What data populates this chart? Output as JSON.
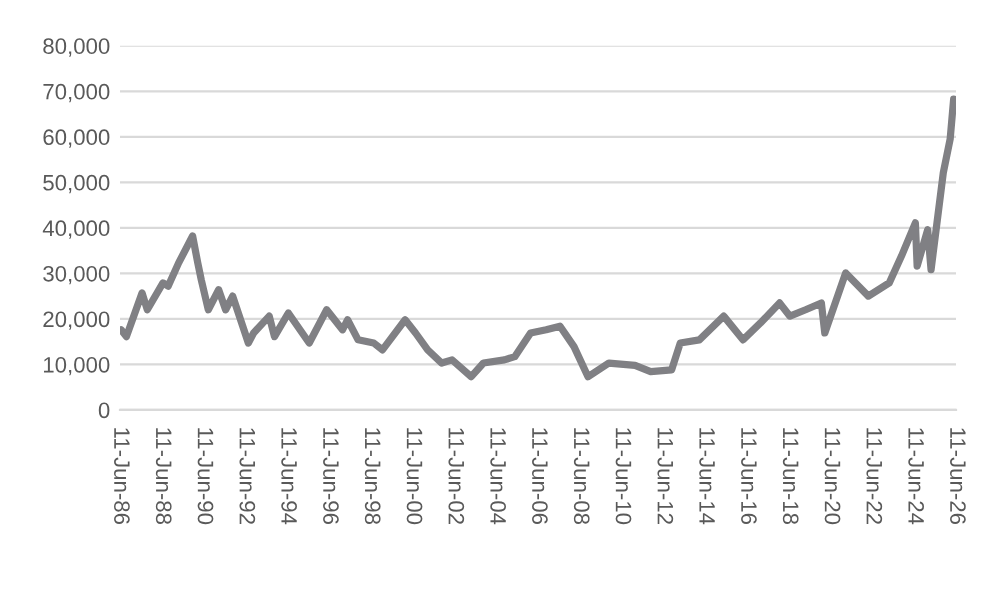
{
  "chart_data": {
    "type": "line",
    "x": [
      "1986-07",
      "1986-10",
      "1987-07",
      "1987-10",
      "1988-07",
      "1988-10",
      "1989-04",
      "1989-12",
      "1990-03",
      "1990-05",
      "1990-09",
      "1991-03",
      "1991-07",
      "1991-11",
      "1992-08",
      "1992-11",
      "1993-08",
      "1993-11",
      "1994-07",
      "1995-07",
      "1996-05",
      "1997-02",
      "1997-05",
      "1997-11",
      "1998-08",
      "1999-01",
      "2000-02",
      "2000-08",
      "2001-03",
      "2001-11",
      "2002-05",
      "2003-04",
      "2003-11",
      "2004-11",
      "2005-05",
      "2006-02",
      "2006-11",
      "2007-07",
      "2008-03",
      "2008-11",
      "2009-11",
      "2011-02",
      "2011-11",
      "2012-11",
      "2013-04",
      "2014-03",
      "2015-05",
      "2016-04",
      "2017-02",
      "2018-01",
      "2018-07",
      "2019-04",
      "2020-01",
      "2020-03",
      "2021-03",
      "2022-04",
      "2023-04",
      "2023-11",
      "2024-07",
      "2024-08",
      "2025-02",
      "2025-04",
      "2025-11",
      "2026-03",
      "2026-05"
    ],
    "series": [
      {
        "color": "#808084",
        "values": [
          17600,
          16100,
          25700,
          22000,
          27900,
          27200,
          32300,
          38200,
          32300,
          28600,
          22000,
          26400,
          22000,
          25000,
          14700,
          16900,
          20600,
          16100,
          21300,
          14700,
          22000,
          17600,
          19800,
          15400,
          14700,
          13200,
          19800,
          16900,
          13200,
          10300,
          11000,
          7300,
          10300,
          11000,
          11700,
          16900,
          17600,
          18400,
          13900,
          7300,
          10300,
          9800,
          8400,
          8800,
          14700,
          15400,
          20600,
          15400,
          19100,
          23500,
          20600,
          22000,
          23500,
          16900,
          30100,
          25000,
          27900,
          33800,
          41100,
          31600,
          39600,
          30800,
          52100,
          59500,
          68300
        ]
      }
    ],
    "xlim": [
      "1986-06-11",
      "2026-06-11"
    ],
    "xticks": [
      {
        "value": "1986-06-11",
        "label": "11-Jun-86"
      },
      {
        "value": "1988-06-11",
        "label": "11-Jun-88"
      },
      {
        "value": "1990-06-11",
        "label": "11-Jun-90"
      },
      {
        "value": "1992-06-11",
        "label": "11-Jun-92"
      },
      {
        "value": "1994-06-11",
        "label": "11-Jun-94"
      },
      {
        "value": "1996-06-11",
        "label": "11-Jun-96"
      },
      {
        "value": "1998-06-11",
        "label": "11-Jun-98"
      },
      {
        "value": "2000-06-11",
        "label": "11-Jun-00"
      },
      {
        "value": "2002-06-11",
        "label": "11-Jun-02"
      },
      {
        "value": "2004-06-11",
        "label": "11-Jun-04"
      },
      {
        "value": "2006-06-11",
        "label": "11-Jun-06"
      },
      {
        "value": "2008-06-11",
        "label": "11-Jun-08"
      },
      {
        "value": "2010-06-11",
        "label": "11-Jun-10"
      },
      {
        "value": "2012-06-11",
        "label": "11-Jun-12"
      },
      {
        "value": "2014-06-11",
        "label": "11-Jun-14"
      },
      {
        "value": "2016-06-11",
        "label": "11-Jun-16"
      },
      {
        "value": "2018-06-11",
        "label": "11-Jun-18"
      },
      {
        "value": "2020-06-11",
        "label": "11-Jun-20"
      },
      {
        "value": "2022-06-11",
        "label": "11-Jun-22"
      },
      {
        "value": "2024-06-11",
        "label": "11-Jun-24"
      },
      {
        "value": "2026-06-11",
        "label": "11-Jun-26"
      }
    ],
    "ylim": [
      0,
      80000
    ],
    "yticks": [
      0,
      {
        "value": 10000,
        "label": "10,000"
      },
      {
        "value": 20000,
        "label": "20,000"
      },
      {
        "value": 30000,
        "label": "30,000"
      },
      {
        "value": 40000,
        "label": "40,000"
      },
      {
        "value": 50000,
        "label": "50,000"
      },
      {
        "value": 60000,
        "label": "60,000"
      },
      {
        "value": 70000,
        "label": "70,000"
      },
      {
        "value": 80000,
        "label": "80,000"
      }
    ],
    "grid": "y",
    "line_style": "solid",
    "marker": "none"
  }
}
